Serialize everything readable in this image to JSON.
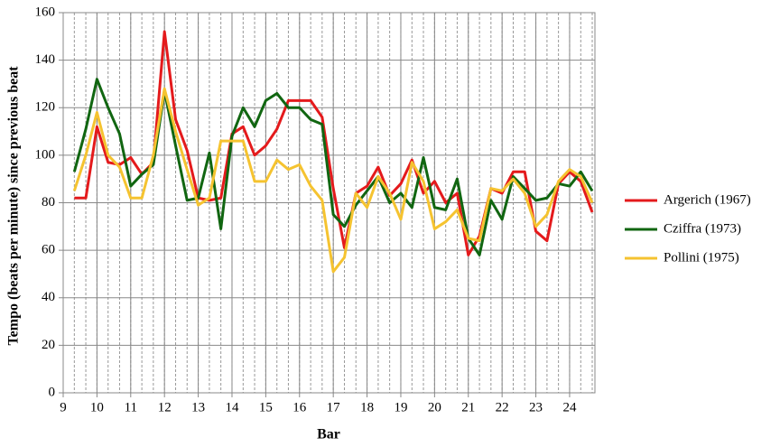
{
  "chart_data": {
    "type": "line",
    "xlabel": "Bar",
    "ylabel": "Tempo (beats per minute) since previous beat",
    "x": [
      9.33,
      9.67,
      10,
      10.33,
      10.67,
      11,
      11.33,
      11.67,
      12,
      12.33,
      12.67,
      13,
      13.33,
      13.67,
      14,
      14.33,
      14.67,
      15,
      15.33,
      15.67,
      16,
      16.33,
      16.67,
      17,
      17.33,
      17.67,
      18,
      18.33,
      18.67,
      19,
      19.33,
      19.67,
      20,
      20.33,
      20.67,
      21,
      21.33,
      21.67,
      22,
      22.33,
      22.67,
      23,
      23.33,
      23.67,
      24,
      24.33,
      24.67
    ],
    "series": [
      {
        "name": "Argerich (1967)",
        "color": "#e41a1c",
        "values": [
          82,
          82,
          112,
          97,
          96,
          99,
          92,
          97,
          152,
          115,
          102,
          82,
          81,
          82,
          109,
          112,
          100,
          104,
          111,
          123,
          123,
          123,
          116,
          86,
          61,
          84,
          87,
          95,
          83,
          88,
          98,
          84,
          89,
          80,
          84,
          58,
          66,
          86,
          84,
          93,
          93,
          68,
          64,
          88,
          93,
          89,
          76
        ]
      },
      {
        "name": "Cziffra (1973)",
        "color": "#116611",
        "values": [
          93,
          111,
          132,
          120,
          109,
          87,
          92,
          96,
          127,
          104,
          81,
          82,
          101,
          69,
          108,
          120,
          112,
          123,
          126,
          120,
          120,
          115,
          113,
          75,
          70,
          79,
          85,
          91,
          80,
          84,
          78,
          99,
          78,
          77,
          90,
          65,
          58,
          81,
          73,
          91,
          86,
          81,
          82,
          88,
          87,
          93,
          85
        ]
      },
      {
        "name": "Pollini (1975)",
        "color": "#f5c330",
        "values": [
          85,
          100,
          118,
          100,
          95,
          82,
          82,
          100,
          128,
          110,
          94,
          79,
          82,
          106,
          106,
          106,
          89,
          89,
          98,
          94,
          96,
          87,
          81,
          51,
          57,
          84,
          78,
          91,
          84,
          73,
          97,
          89,
          69,
          72,
          77,
          65,
          64,
          86,
          85,
          90,
          84,
          70,
          75,
          89,
          94,
          91,
          80
        ]
      }
    ],
    "xlim": [
      9,
      24.75
    ],
    "xticks": [
      9,
      10,
      11,
      12,
      13,
      14,
      15,
      16,
      17,
      18,
      19,
      20,
      21,
      22,
      23,
      24
    ],
    "ylim": [
      0,
      160
    ],
    "yticks": [
      0,
      20,
      40,
      60,
      80,
      100,
      120,
      140,
      160
    ],
    "grid": true,
    "legend": "right"
  }
}
